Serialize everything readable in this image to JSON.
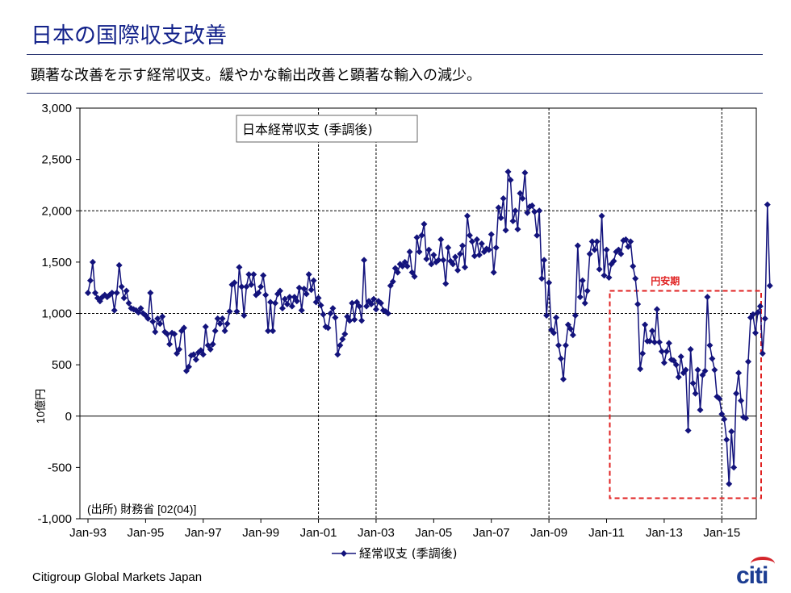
{
  "header": {
    "title": "日本の国際収支改善",
    "subtitle": "顕著な改善を示す経常収支。緩やかな輸出改善と顕著な輸入の減少。"
  },
  "footer": {
    "source_firm": "Citigroup Global Markets Japan",
    "logo_text": "citi"
  },
  "colors": {
    "title": "#13228a",
    "series": "#13137c",
    "highlight": "#e02020",
    "rule": "#24306e"
  },
  "chart_data": {
    "type": "line",
    "title": "日本経常収支 (季調後)",
    "ylabel": "10億円",
    "xlabel": "",
    "ylim": [
      -1000,
      3000
    ],
    "yticks": [
      -1000,
      -500,
      0,
      500,
      1000,
      1500,
      2000,
      2500,
      3000
    ],
    "ytick_labels": [
      "-1,000",
      "-500",
      "0",
      "500",
      "1,000",
      "1,500",
      "2,000",
      "2,500",
      "3,000"
    ],
    "xlim": [
      "1993-01",
      "2015-12"
    ],
    "xtick_labels": [
      "Jan-93",
      "Jan-95",
      "Jan-97",
      "Jan-99",
      "Jan-01",
      "Jan-03",
      "Jan-05",
      "Jan-07",
      "Jan-09",
      "Jan-11",
      "Jan-13",
      "Jan-15"
    ],
    "vertical_gridlines": [
      "Jan-01",
      "Jan-03",
      "Jan-09",
      "Jan-15"
    ],
    "horizontal_gridlines": [
      0,
      1000,
      2000
    ],
    "source_note": "(出所) 財務省 [02(04)]",
    "annotation": {
      "label": "円安期",
      "from": "2011-01",
      "to": "2015-12",
      "ymin": -800,
      "ymax": 1220
    },
    "legend": "bottom-center",
    "series": [
      {
        "name": "経常収支 (季調後)",
        "marker": "diamond",
        "x_start": "1993-01",
        "frequency": "monthly",
        "values": [
          1200,
          1320,
          1500,
          1200,
          1150,
          1120,
          1160,
          1180,
          1160,
          1180,
          1200,
          1030,
          1200,
          1470,
          1260,
          1150,
          1220,
          1100,
          1050,
          1040,
          1030,
          1010,
          1050,
          1000,
          980,
          950,
          1200,
          920,
          820,
          950,
          900,
          970,
          820,
          800,
          700,
          810,
          800,
          610,
          650,
          830,
          860,
          440,
          480,
          590,
          600,
          550,
          620,
          640,
          600,
          870,
          690,
          650,
          700,
          830,
          950,
          900,
          950,
          830,
          900,
          1020,
          1280,
          1300,
          1020,
          1450,
          1260,
          980,
          1260,
          1380,
          1280,
          1380,
          1180,
          1200,
          1260,
          1370,
          1180,
          830,
          1110,
          830,
          1100,
          1190,
          1220,
          1050,
          1140,
          1090,
          1160,
          1070,
          1160,
          1120,
          1250,
          1030,
          1240,
          1190,
          1380,
          1230,
          1320,
          1110,
          1150,
          1080,
          990,
          870,
          860,
          1000,
          1050,
          960,
          600,
          690,
          750,
          800,
          970,
          930,
          1100,
          940,
          1110,
          1070,
          930,
          1520,
          1070,
          1120,
          1090,
          1140,
          1040,
          1120,
          1100,
          1030,
          1020,
          1000,
          1270,
          1310,
          1440,
          1400,
          1480,
          1460,
          1500,
          1460,
          1600,
          1400,
          1360,
          1740,
          1600,
          1760,
          1870,
          1530,
          1620,
          1480,
          1570,
          1500,
          1520,
          1720,
          1520,
          1290,
          1640,
          1510,
          1480,
          1550,
          1420,
          1580,
          1660,
          1450,
          1950,
          1760,
          1700,
          1560,
          1720,
          1570,
          1680,
          1600,
          1630,
          1620,
          1770,
          1400,
          1640,
          2030,
          1930,
          2120,
          1810,
          2380,
          2300,
          1900,
          2000,
          1820,
          2170,
          2120,
          2370,
          1980,
          2040,
          2050,
          1990,
          1760,
          2000,
          1340,
          1520,
          980,
          1300,
          840,
          810,
          960,
          690,
          560,
          360,
          690,
          890,
          850,
          790,
          980,
          1660,
          1160,
          1320,
          1100,
          1220,
          1580,
          1700,
          1620,
          1700,
          1430,
          1950,
          1370,
          1620,
          1350,
          1480,
          1510,
          1600,
          1620,
          1580,
          1710,
          1720,
          1650,
          1700,
          1460,
          1340,
          1090,
          460,
          610,
          890,
          730,
          730,
          830,
          720,
          1040,
          720,
          630,
          520,
          630,
          710,
          550,
          540,
          500,
          380,
          580,
          420,
          450,
          -140,
          650,
          320,
          220,
          450,
          60,
          400,
          440,
          1160,
          690,
          560,
          450,
          190,
          170,
          20,
          -30,
          -230,
          -660,
          -150,
          -500,
          220,
          420,
          150,
          -10,
          -20,
          530,
          960,
          990,
          810,
          1010,
          1070,
          610,
          950,
          2060,
          1270
        ]
      }
    ]
  }
}
